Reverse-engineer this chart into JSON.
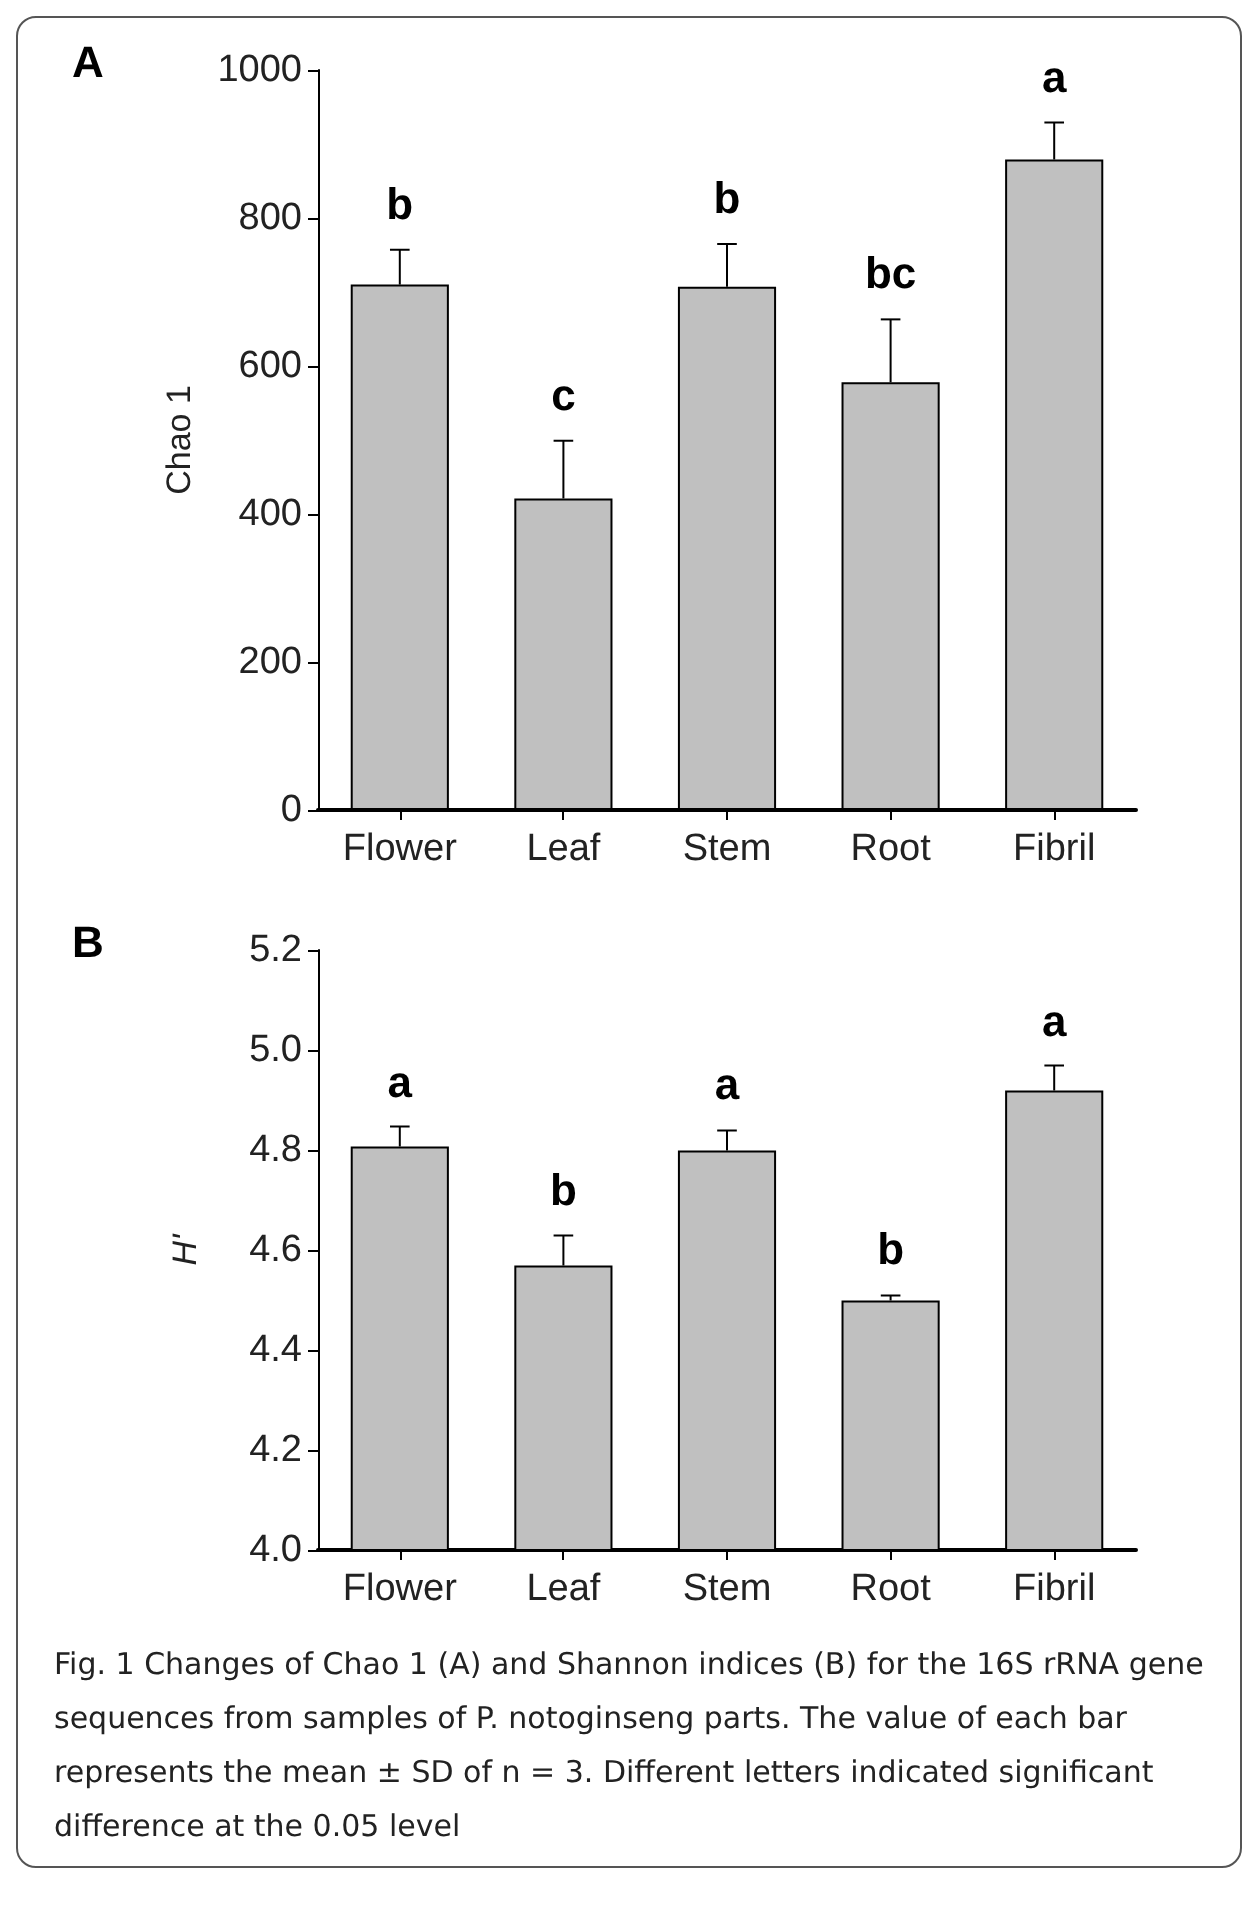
{
  "chart_data": [
    {
      "type": "bar",
      "title": "A",
      "ylabel": "Chao 1",
      "categories": [
        "Flower",
        "Leaf",
        "Stem",
        "Root",
        "Fibril"
      ],
      "values": [
        710,
        421,
        707,
        578,
        879
      ],
      "errors": [
        47,
        78,
        58,
        85,
        50
      ],
      "color": "#c0c0c0",
      "ylim": [
        0,
        1000
      ],
      "yticks": [
        0,
        200,
        400,
        600,
        800,
        1000
      ],
      "grid": false,
      "annotations": [
        {
          "text": "b",
          "x": "Flower",
          "y": 757
        },
        {
          "text": "c",
          "x": "Leaf",
          "y": 499
        },
        {
          "text": "b",
          "x": "Stem",
          "y": 765
        },
        {
          "text": "bc",
          "x": "Root",
          "y": 663
        },
        {
          "text": "a",
          "x": "Fibril",
          "y": 929
        }
      ]
    },
    {
      "type": "bar",
      "title": "B",
      "ylabel": "H'",
      "categories": [
        "Flower",
        "Leaf",
        "Stem",
        "Root",
        "Fibril"
      ],
      "values": [
        4.807,
        4.569,
        4.799,
        4.499,
        4.919
      ],
      "errors": [
        0.04,
        0.06,
        0.04,
        0.01,
        0.05
      ],
      "color": "#c0c0c0",
      "ylim": [
        4.0,
        5.2
      ],
      "yticks": [
        {
          "value": 4.0,
          "label": "4.0"
        },
        {
          "value": 4.2,
          "label": "4.2"
        },
        {
          "value": 4.4,
          "label": "4.4"
        },
        {
          "value": 4.6,
          "label": "4.6"
        },
        {
          "value": 4.8,
          "label": "4.8"
        },
        {
          "value": 5.0,
          "label": "5.0"
        },
        {
          "value": 5.2,
          "label": "5.2"
        }
      ],
      "grid": false,
      "annotations": [
        {
          "text": "a",
          "x": "Flower",
          "y": 4.845
        },
        {
          "text": "b",
          "x": "Leaf",
          "y": 4.628
        },
        {
          "text": "a",
          "x": "Stem",
          "y": 4.841
        },
        {
          "text": "b",
          "x": "Root",
          "y": 4.511
        },
        {
          "text": "a",
          "x": "Fibril",
          "y": 4.966
        },
        "Fig. 1  Changes of Chao 1 (A) and Shannon indices (B) for the 16S rRNA gene sequences from samples of P. notoginseng parts. The value of each bar represents the mean ± SD of n = 3. Different letters indicated significant difference at the 0.05 level"
      ]
    }
  ]
}
